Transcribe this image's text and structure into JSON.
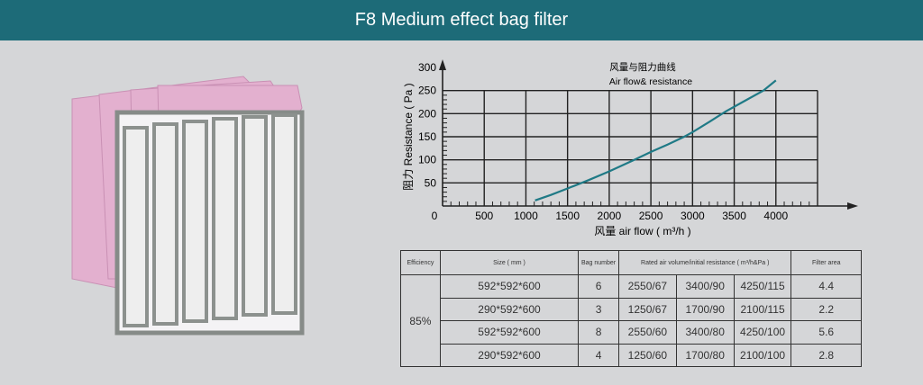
{
  "header": {
    "title": "F8 Medium effect bag filter"
  },
  "colors": {
    "header": "#1d6b78",
    "curve": "#1f7a86",
    "bag": "#e7b3d3",
    "frame": "#8a8f8c"
  },
  "chart_data": {
    "type": "line",
    "title_cn": "风量与阻力曲线",
    "title": "Air flow& resistance",
    "xlabel": "风量 air flow ( m³/h )",
    "ylabel": "阻力 Resistance ( Pa )",
    "xlim": [
      0,
      4500
    ],
    "ylim": [
      0,
      300
    ],
    "xticks": [
      "0",
      "500",
      "1000",
      "1500",
      "2000",
      "2500",
      "3000",
      "3500",
      "4000"
    ],
    "yticks": [
      "50",
      "100",
      "150",
      "200",
      "250",
      "300"
    ],
    "grid": true,
    "x": [
      1110,
      1300,
      1500,
      1750,
      2000,
      2300,
      2500,
      2700,
      2900,
      3000,
      3200,
      3400,
      3600,
      3850,
      4000
    ],
    "y": [
      12,
      24,
      38,
      56,
      75,
      100,
      117,
      133,
      150,
      160,
      182,
      205,
      225,
      250,
      272
    ]
  },
  "table": {
    "headers": [
      "Efficiency",
      "Size ( mm )",
      "Bag number",
      "Rated air volume/initial resistance ( m³/h&Pa )",
      "Filter area"
    ],
    "efficiency": "85%",
    "rows": [
      {
        "size": "592*592*600",
        "bags": "6",
        "r1": "2550/67",
        "r2": "3400/90",
        "r3": "4250/115",
        "area": "4.4"
      },
      {
        "size": "290*592*600",
        "bags": "3",
        "r1": "1250/67",
        "r2": "1700/90",
        "r3": "2100/115",
        "area": "2.2"
      },
      {
        "size": "592*592*600",
        "bags": "8",
        "r1": "2550/60",
        "r2": "3400/80",
        "r3": "4250/100",
        "area": "5.6"
      },
      {
        "size": "290*592*600",
        "bags": "4",
        "r1": "1250/60",
        "r2": "1700/80",
        "r3": "2100/100",
        "area": "2.8"
      }
    ]
  }
}
